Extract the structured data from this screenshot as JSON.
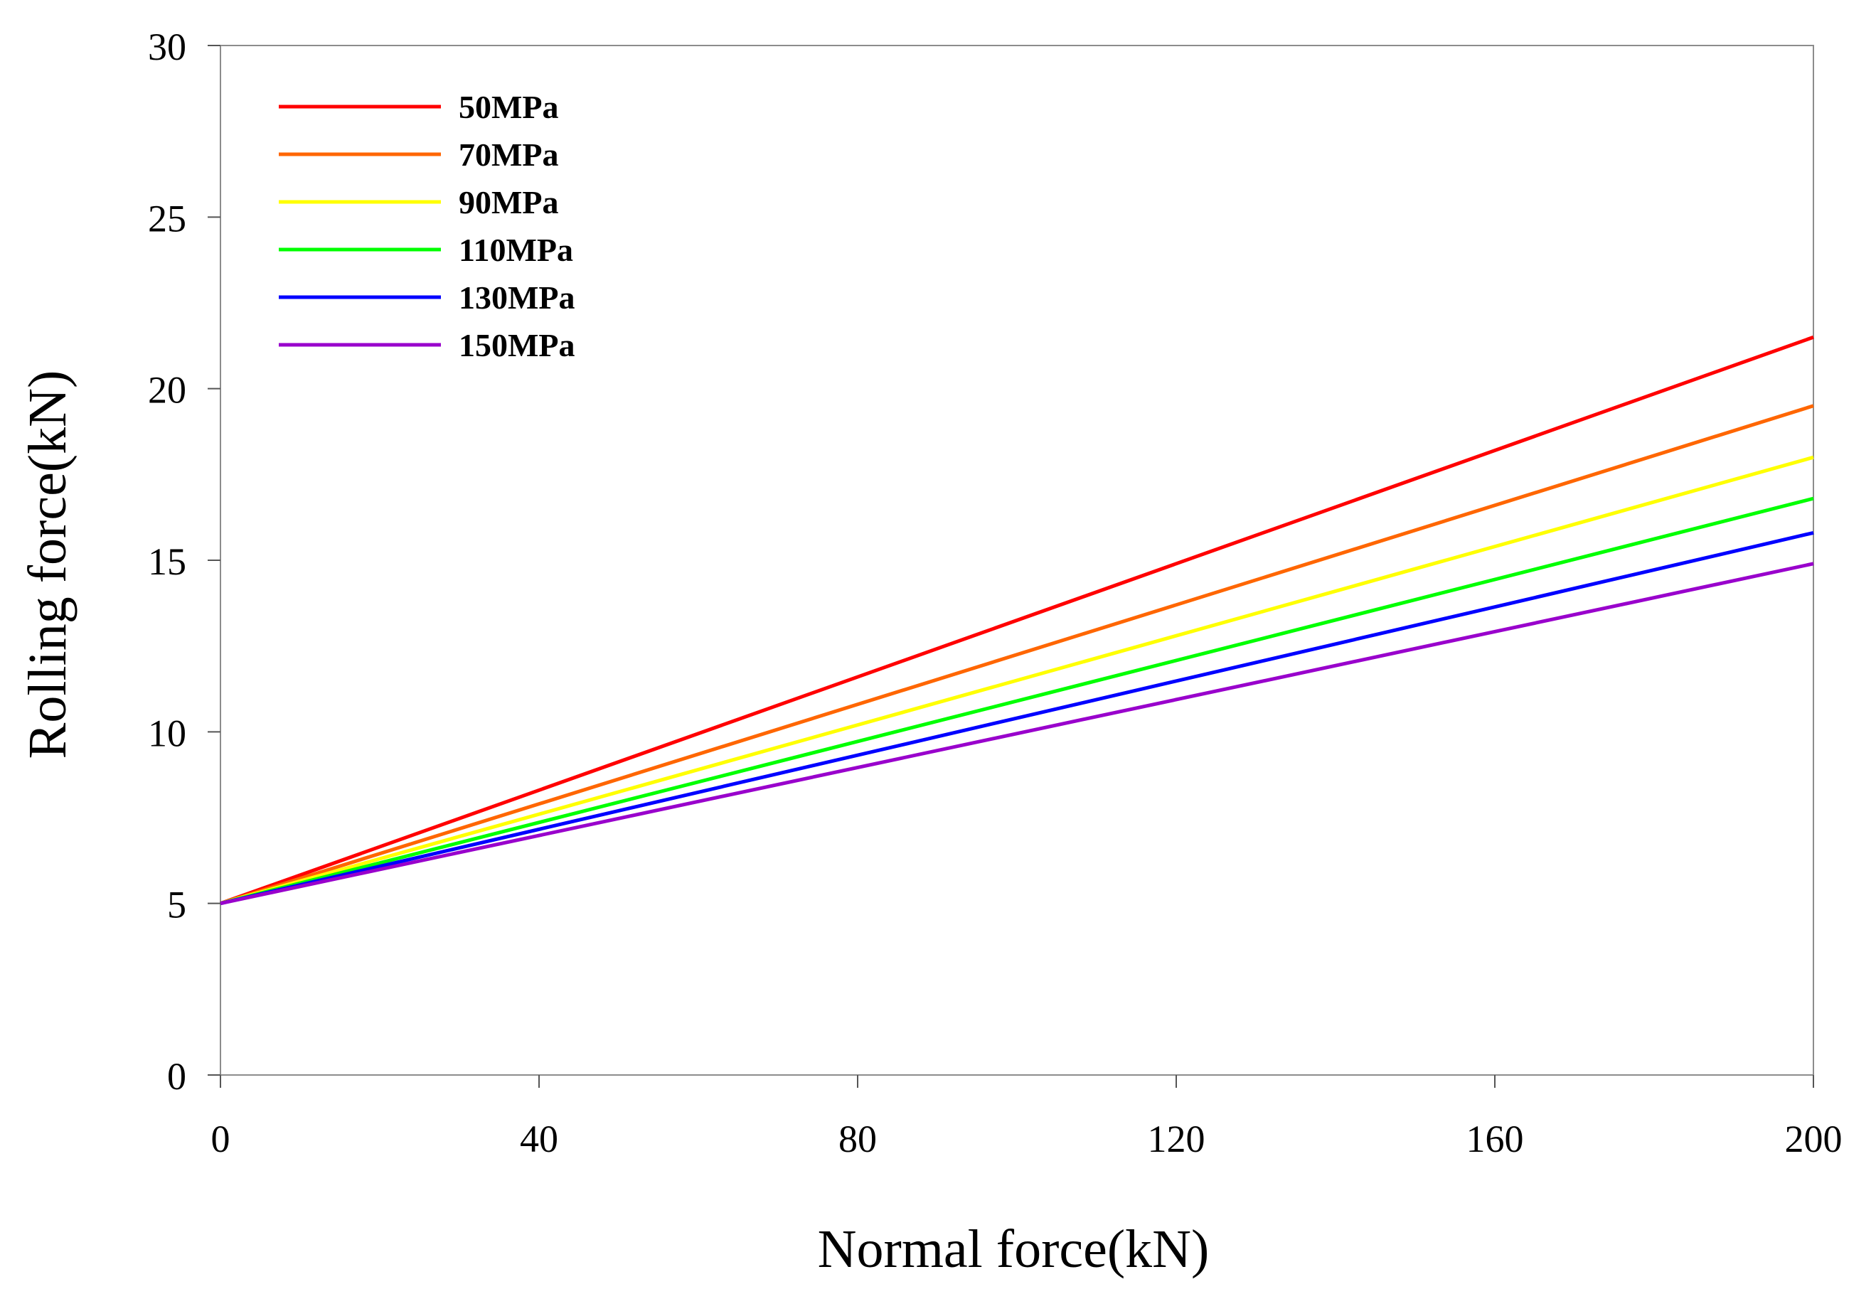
{
  "chart_data": {
    "type": "line",
    "title": "",
    "xlabel": "Normal force(kN)",
    "ylabel": "Rolling force(kN)",
    "xlim": [
      0,
      200
    ],
    "ylim": [
      0,
      30
    ],
    "xticks": [
      0,
      40,
      80,
      120,
      160,
      200
    ],
    "yticks": [
      0,
      5,
      10,
      15,
      20,
      25,
      30
    ],
    "x": [
      0,
      200
    ],
    "grid": false,
    "legend_position": "top-left",
    "series": [
      {
        "name": "50MPa",
        "color": "#ff0000",
        "values": [
          5,
          21.5
        ]
      },
      {
        "name": "70MPa",
        "color": "#ff6600",
        "values": [
          5,
          19.5
        ]
      },
      {
        "name": "90MPa",
        "color": "#ffff00",
        "values": [
          5,
          18.0
        ]
      },
      {
        "name": "110MPa",
        "color": "#00ff00",
        "values": [
          5,
          16.8
        ]
      },
      {
        "name": "130MPa",
        "color": "#0000ff",
        "values": [
          5,
          15.8
        ]
      },
      {
        "name": "150MPa",
        "color": "#9900cc",
        "values": [
          5,
          14.9
        ]
      }
    ]
  }
}
